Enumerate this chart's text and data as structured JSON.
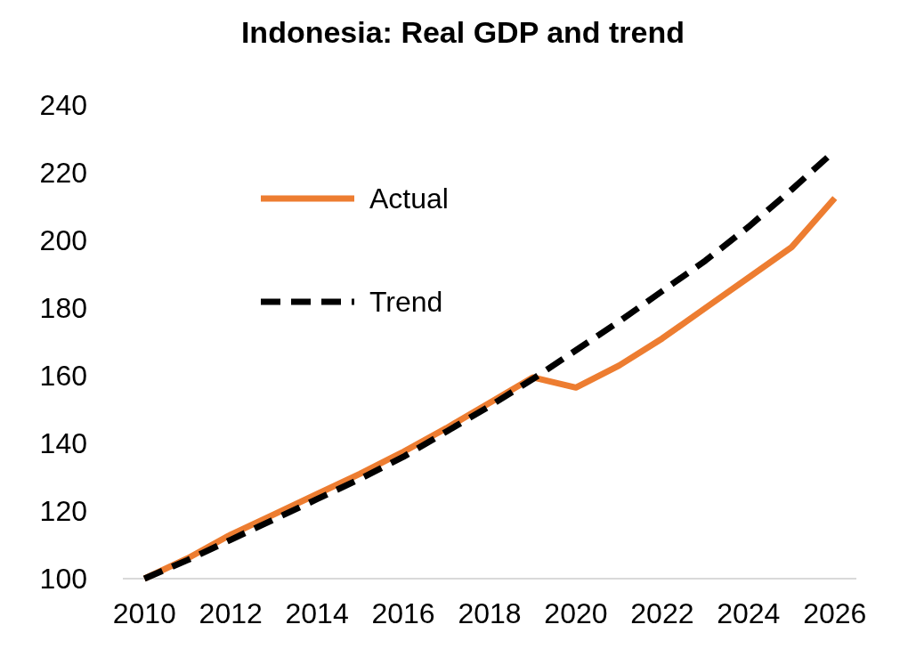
{
  "chart_data": {
    "type": "line",
    "title": "Indonesia: Real GDP and trend",
    "x": [
      2010,
      2011,
      2012,
      2013,
      2014,
      2015,
      2016,
      2017,
      2018,
      2019,
      2020,
      2021,
      2022,
      2023,
      2024,
      2025,
      2026
    ],
    "series": [
      {
        "name": "Actual",
        "color": "#ed7d31",
        "line_style": "solid",
        "values": [
          100,
          106,
          113,
          119,
          125,
          131,
          137.5,
          144.5,
          152,
          159.5,
          156.5,
          163,
          171,
          180,
          189,
          198,
          212.5
        ]
      },
      {
        "name": "Trend",
        "color": "#000000",
        "line_style": "dashed",
        "values": [
          100,
          105.5,
          111.5,
          117.5,
          123.5,
          129.5,
          136,
          143.5,
          151,
          159,
          167.5,
          176,
          185,
          194,
          204,
          215,
          226.5
        ]
      }
    ],
    "xlim": [
      2009.5,
      2026.5
    ],
    "xticks": [
      2010,
      2012,
      2014,
      2016,
      2018,
      2020,
      2022,
      2024,
      2026
    ],
    "ylim": [
      100,
      240
    ],
    "yticks": [
      100,
      120,
      140,
      160,
      180,
      200,
      220,
      240
    ],
    "grid": false,
    "legend": "top left",
    "marker": "none"
  }
}
